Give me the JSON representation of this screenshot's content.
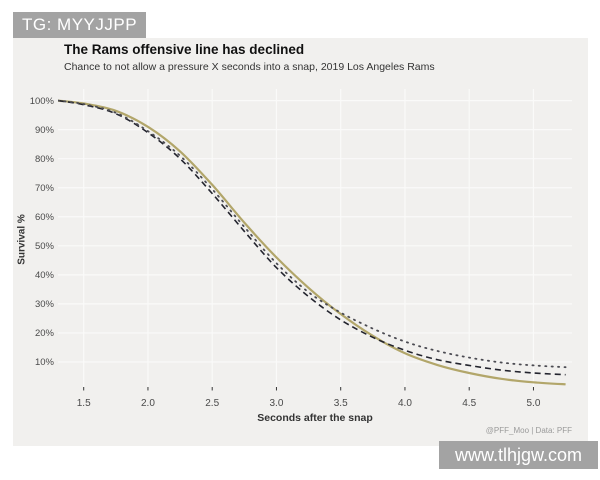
{
  "watermark_top": {
    "text": "TG: MYYJJPP"
  },
  "watermark_bottom": {
    "text": "www.tlhjgw.com"
  },
  "chart": {
    "title": "The Rams offensive line has declined",
    "subtitle": "Chance to not allow a pressure X seconds into a snap, 2019 Los Angeles Rams",
    "caption": "@PFF_Moo | Data: PFF",
    "xlabel": "Seconds after the snap",
    "ylabel": "Survival %"
  },
  "chart_data": {
    "type": "line",
    "title": "The Rams offensive line has declined",
    "subtitle": "Chance to not allow a pressure X seconds into a snap, 2019 Los Angeles Rams",
    "xlabel": "Seconds after the snap",
    "ylabel": "Survival %",
    "xlim": [
      1.3,
      5.3
    ],
    "ylim": [
      0,
      104
    ],
    "x_ticks": [
      1.5,
      2.0,
      2.5,
      3.0,
      3.5,
      4.0,
      4.5,
      5.0
    ],
    "y_ticks": [
      10,
      20,
      30,
      40,
      50,
      60,
      70,
      80,
      90,
      100
    ],
    "y_tick_suffix": "%",
    "grid": true,
    "legend": "none",
    "x": [
      1.3,
      1.5,
      1.75,
      2.0,
      2.25,
      2.5,
      2.75,
      3.0,
      3.25,
      3.5,
      3.75,
      4.0,
      4.25,
      4.5,
      4.75,
      5.0,
      5.25
    ],
    "series": [
      {
        "name": "solid-line",
        "style": "solid",
        "color": "#b2a66a",
        "width": 2.2,
        "values": [
          100,
          99,
          96.5,
          91,
          82.5,
          71,
          58,
          46,
          35.5,
          26.5,
          19,
          13,
          9,
          6.2,
          4.2,
          3,
          2.3
        ]
      },
      {
        "name": "dashed-line",
        "style": "dashed",
        "color": "#23242e",
        "width": 1.6,
        "values": [
          100,
          98.6,
          95.5,
          89,
          80,
          68,
          55,
          42.5,
          32.5,
          24.5,
          18.5,
          14,
          10.8,
          8.8,
          7.2,
          6.2,
          5.6
        ]
      },
      {
        "name": "dotted-line",
        "style": "dotted",
        "color": "#4b4b52",
        "width": 1.8,
        "values": [
          100,
          98.8,
          95.8,
          89.5,
          81,
          69.5,
          56.5,
          44,
          34,
          27,
          21.5,
          17,
          13.8,
          11.5,
          9.8,
          8.8,
          8.2
        ]
      }
    ]
  },
  "colors": {
    "page_bg": "#ffffff",
    "figure_bg": "#f1f0ee",
    "gridline": "#fafaf9",
    "tick_mark": "#333333",
    "watermark_bg": "#a3a3a3"
  }
}
